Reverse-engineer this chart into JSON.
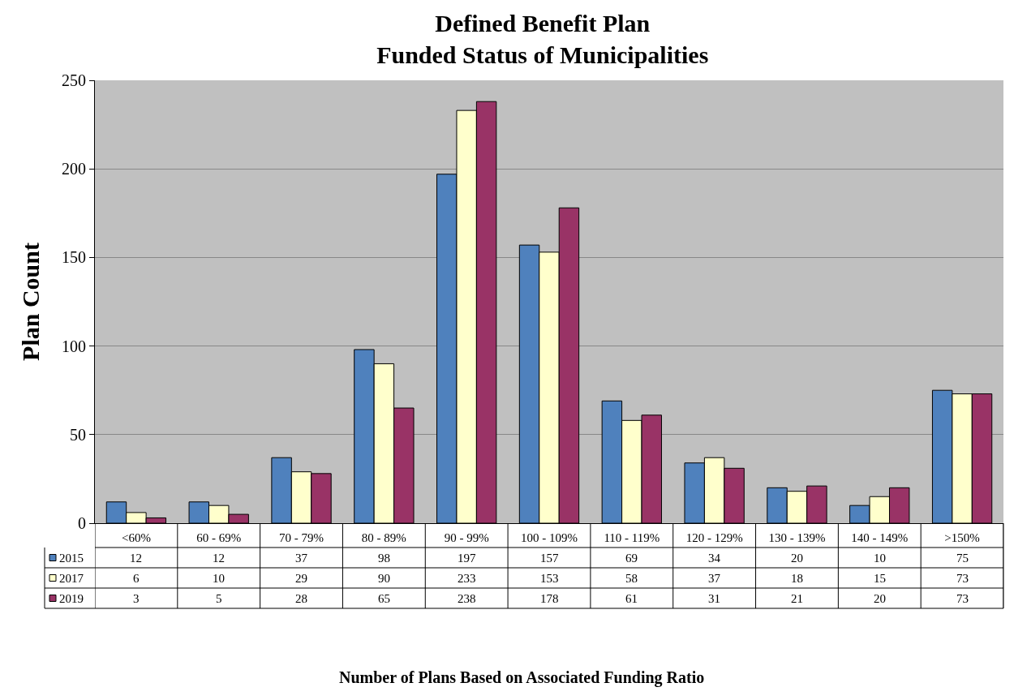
{
  "chart_data": {
    "type": "bar",
    "title": "Defined Benefit Plan\nFunded Status of Municipalities",
    "annotations": [
      "Number of Plans Based on Associated Funding Ratio"
    ],
    "ylabel": "Plan Count",
    "categories": [
      "<60%",
      "60 - 69%",
      "70 - 79%",
      "80 - 89%",
      "90 - 99%",
      "100 - 109%",
      "110 - 119%",
      "120 - 129%",
      "130 - 139%",
      "140 - 149%",
      ">150%"
    ],
    "series": [
      {
        "name": "2015",
        "color": "#4f81bd",
        "values": [
          12,
          12,
          37,
          98,
          197,
          157,
          69,
          34,
          20,
          10,
          75
        ]
      },
      {
        "name": "2017",
        "color": "#ffffcc",
        "values": [
          6,
          10,
          29,
          90,
          233,
          153,
          58,
          37,
          18,
          15,
          73
        ]
      },
      {
        "name": "2019",
        "color": "#993366",
        "values": [
          3,
          5,
          28,
          65,
          238,
          178,
          61,
          31,
          21,
          20,
          73
        ]
      }
    ],
    "ylim": [
      0,
      250
    ],
    "yticks": [
      0,
      50,
      100,
      150,
      200,
      250
    ],
    "grid": "y",
    "legend": "bottom",
    "data_labels": true
  }
}
